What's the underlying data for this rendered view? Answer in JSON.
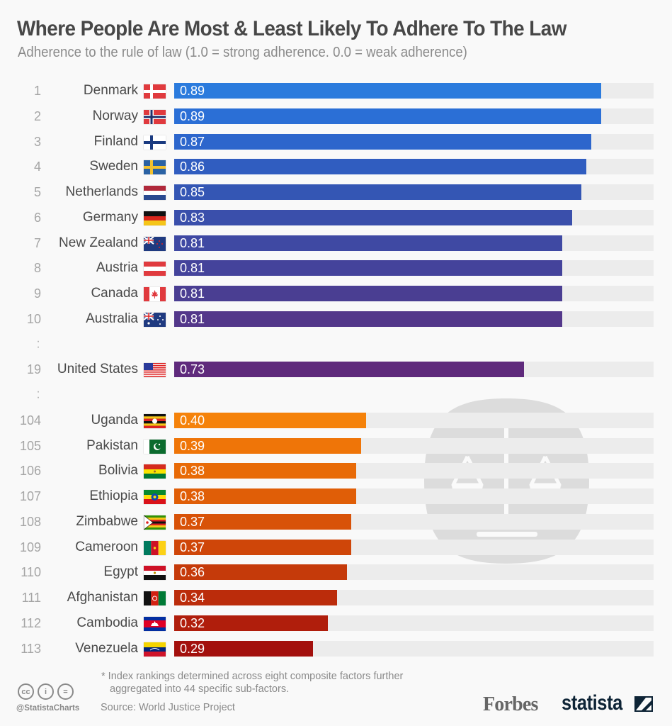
{
  "header": {
    "title": "Where People Are Most & Least Likely To Adhere To The Law",
    "subtitle": "Adherence to the rule of law (1.0 = strong adherence. 0.0 = weak adherence)"
  },
  "chart_data": {
    "type": "bar",
    "orientation": "horizontal",
    "title": "Where People Are Most & Least Likely To Adhere To The Law",
    "subtitle": "Adherence to the rule of law (1.0 = strong adherence. 0.0 = weak adherence)",
    "xlim": [
      0,
      1.0
    ],
    "grid": false,
    "legend": "none",
    "gap_marker": ":",
    "rows": [
      {
        "rank": "1",
        "country": "Denmark",
        "flag": "denmark-flag",
        "value": 0.89,
        "label": "0.89",
        "color": "#2b7bdd"
      },
      {
        "rank": "2",
        "country": "Norway",
        "flag": "norway-flag",
        "value": 0.89,
        "label": "0.89",
        "color": "#2b6fd6"
      },
      {
        "rank": "3",
        "country": "Finland",
        "flag": "finland-flag",
        "value": 0.87,
        "label": "0.87",
        "color": "#2d66cc"
      },
      {
        "rank": "4",
        "country": "Sweden",
        "flag": "sweden-flag",
        "value": 0.86,
        "label": "0.86",
        "color": "#305dc0"
      },
      {
        "rank": "5",
        "country": "Netherlands",
        "flag": "netherlands-flag",
        "value": 0.85,
        "label": "0.85",
        "color": "#3456b4"
      },
      {
        "rank": "6",
        "country": "Germany",
        "flag": "germany-flag",
        "value": 0.83,
        "label": "0.83",
        "color": "#3a4fab"
      },
      {
        "rank": "7",
        "country": "New Zealand",
        "flag": "new-zealand-flag",
        "value": 0.81,
        "label": "0.81",
        "color": "#3f49a3"
      },
      {
        "rank": "8",
        "country": "Austria",
        "flag": "austria-flag",
        "value": 0.81,
        "label": "0.81",
        "color": "#44439b"
      },
      {
        "rank": "9",
        "country": "Canada",
        "flag": "canada-flag",
        "value": 0.81,
        "label": "0.81",
        "color": "#4a3e92"
      },
      {
        "rank": "10",
        "country": "Australia",
        "flag": "australia-flag",
        "value": 0.81,
        "label": "0.81",
        "color": "#53378a"
      },
      {
        "gap": true
      },
      {
        "rank": "19",
        "country": "United States",
        "flag": "united-states-flag",
        "value": 0.73,
        "label": "0.73",
        "color": "#5f2a7c"
      },
      {
        "gap": true
      },
      {
        "rank": "104",
        "country": "Uganda",
        "flag": "uganda-flag",
        "value": 0.4,
        "label": "0.40",
        "color": "#f5820a"
      },
      {
        "rank": "105",
        "country": "Pakistan",
        "flag": "pakistan-flag",
        "value": 0.39,
        "label": "0.39",
        "color": "#ef7508"
      },
      {
        "rank": "106",
        "country": "Bolivia",
        "flag": "bolivia-flag",
        "value": 0.38,
        "label": "0.38",
        "color": "#e86a07"
      },
      {
        "rank": "107",
        "country": "Ethiopia",
        "flag": "ethiopia-flag",
        "value": 0.38,
        "label": "0.38",
        "color": "#e05e07"
      },
      {
        "rank": "108",
        "country": "Zimbabwe",
        "flag": "zimbabwe-flag",
        "value": 0.37,
        "label": "0.37",
        "color": "#d85208"
      },
      {
        "rank": "109",
        "country": "Cameroon",
        "flag": "cameroon-flag",
        "value": 0.37,
        "label": "0.37",
        "color": "#cf4609"
      },
      {
        "rank": "110",
        "country": "Egypt",
        "flag": "egypt-flag",
        "value": 0.36,
        "label": "0.36",
        "color": "#c53a0a"
      },
      {
        "rank": "111",
        "country": "Afghanistan",
        "flag": "afghanistan-flag",
        "value": 0.34,
        "label": "0.34",
        "color": "#bb2c0b"
      },
      {
        "rank": "112",
        "country": "Cambodia",
        "flag": "cambodia-flag",
        "value": 0.32,
        "label": "0.32",
        "color": "#b01e0c"
      },
      {
        "rank": "113",
        "country": "Venezuela",
        "flag": "venezuela-flag",
        "value": 0.29,
        "label": "0.29",
        "color": "#a3100d"
      }
    ]
  },
  "footer": {
    "note_line1": "* Index rankings determined across eight composite factors further",
    "note_line2": "aggregated into 44 specific sub-factors.",
    "source": "Source: World Justice Project",
    "handle": "@StatistaCharts",
    "cc_icons": [
      "cc",
      "i",
      "="
    ],
    "brand_forbes": "Forbes",
    "brand_statista": "statista"
  },
  "watermark": {
    "icon": "scales-of-justice-icon"
  }
}
